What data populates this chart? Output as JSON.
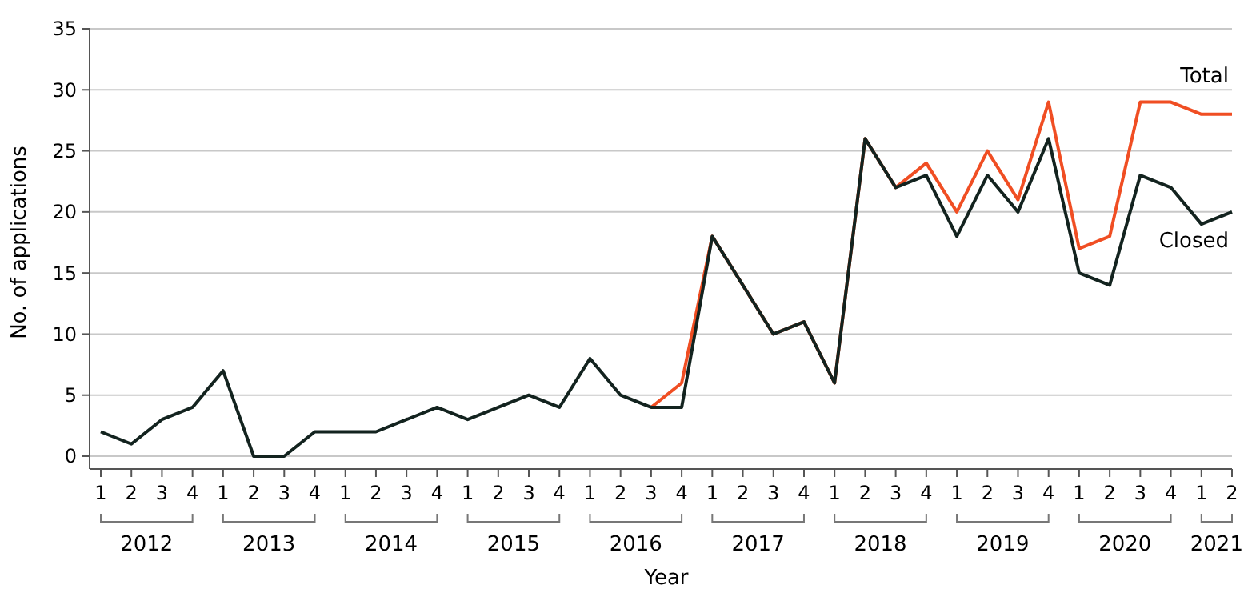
{
  "chart_data": {
    "type": "line",
    "xlabel": "Year",
    "ylabel": "No. of applications",
    "categories": [
      "1",
      "2",
      "3",
      "4",
      "1",
      "2",
      "3",
      "4",
      "1",
      "2",
      "3",
      "4",
      "1",
      "2",
      "3",
      "4",
      "1",
      "2",
      "3",
      "4",
      "1",
      "2",
      "3",
      "4",
      "1",
      "2",
      "3",
      "4",
      "1",
      "2",
      "3",
      "4",
      "1",
      "2",
      "3",
      "4",
      "1",
      "2"
    ],
    "annotations": [
      "2012",
      "2013",
      "2014",
      "2015",
      "2016",
      "2017",
      "2018",
      "2019",
      "2020",
      "2021"
    ],
    "series": [
      {
        "name": "Total",
        "color": "#f04e23",
        "values": [
          null,
          null,
          null,
          null,
          null,
          null,
          null,
          null,
          null,
          null,
          null,
          null,
          null,
          null,
          null,
          null,
          null,
          null,
          4,
          6,
          18,
          14,
          10,
          11,
          6,
          26,
          22,
          24,
          20,
          25,
          21,
          29,
          17,
          18,
          29,
          29,
          28,
          28
        ]
      },
      {
        "name": "Closed",
        "color": "#13231f",
        "values": [
          2,
          1,
          3,
          4,
          7,
          0,
          0,
          2,
          2,
          2,
          3,
          4,
          3,
          4,
          5,
          4,
          8,
          5,
          4,
          4,
          18,
          14,
          10,
          11,
          6,
          26,
          22,
          23,
          18,
          23,
          20,
          26,
          15,
          14,
          23,
          22,
          19,
          20
        ]
      }
    ],
    "ylim": [
      0,
      35
    ],
    "yticks": [
      0,
      5,
      10,
      15,
      20,
      25,
      30,
      35
    ],
    "grid": "y",
    "legend": false,
    "line_style": "solid",
    "marker": "none"
  }
}
